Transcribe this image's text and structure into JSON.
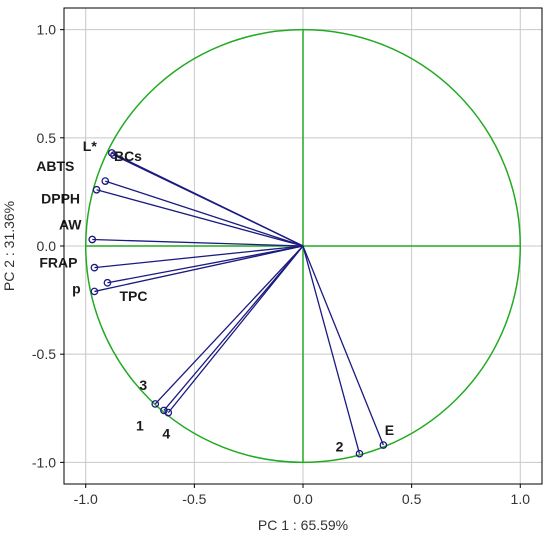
{
  "chart_data": {
    "type": "scatter",
    "title": "",
    "xlabel": "PC 1 : 65.59%",
    "ylabel": "PC 2 : 31.36%",
    "xlim": [
      -1.1,
      1.1
    ],
    "ylim": [
      -1.1,
      1.1
    ],
    "xticks": [
      "-1.0",
      "-0.5",
      "0.0",
      "0.5",
      "1.0"
    ],
    "yticks": [
      "-1.0",
      "-0.5",
      "0.0",
      "0.5",
      "1.0"
    ],
    "xtick_values": [
      -1.0,
      -0.5,
      0.0,
      0.5,
      1.0
    ],
    "ytick_values": [
      -1.0,
      -0.5,
      0.0,
      0.5,
      1.0
    ],
    "grid": true,
    "unit_circle": true,
    "colors": {
      "vectors": "#1a1a80",
      "circle": "#22aa22",
      "grid": "#c8c8c8",
      "frame": "#000000"
    },
    "points": [
      {
        "label": "L*",
        "x": -0.88,
        "y": 0.43
      },
      {
        "label": "BCs",
        "x": -0.87,
        "y": 0.42
      },
      {
        "label": "ABTS",
        "x": -0.91,
        "y": 0.3
      },
      {
        "label": "DPPH",
        "x": -0.95,
        "y": 0.26
      },
      {
        "label": "AW",
        "x": -0.97,
        "y": 0.03
      },
      {
        "label": "FRAP",
        "x": -0.96,
        "y": -0.1
      },
      {
        "label": "TPC",
        "x": -0.9,
        "y": -0.17
      },
      {
        "label": "p",
        "x": -0.96,
        "y": -0.21
      },
      {
        "label": "3",
        "x": -0.68,
        "y": -0.73
      },
      {
        "label": "1",
        "x": -0.64,
        "y": -0.76
      },
      {
        "label": "4",
        "x": -0.62,
        "y": -0.77
      },
      {
        "label": "2",
        "x": 0.26,
        "y": -0.96
      },
      {
        "label": "E",
        "x": 0.37,
        "y": -0.92
      }
    ]
  }
}
